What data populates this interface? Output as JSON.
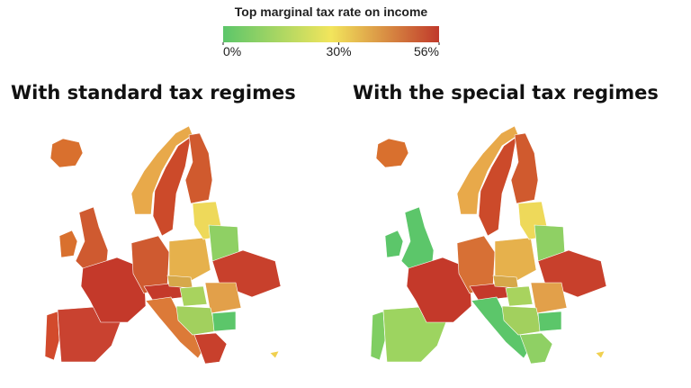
{
  "legend": {
    "title": "Top marginal tax rate on income",
    "range": [
      0,
      56
    ],
    "colors": [
      "#5cc66a",
      "#f2e55c",
      "#c0392b"
    ],
    "ticks": [
      {
        "value": 0,
        "label": "0%"
      },
      {
        "value": 30,
        "label": "30%"
      },
      {
        "value": 56,
        "label": "56%"
      }
    ]
  },
  "panels": [
    {
      "title": "With standard tax regimes"
    },
    {
      "title": "With the special tax regimes"
    }
  ]
}
